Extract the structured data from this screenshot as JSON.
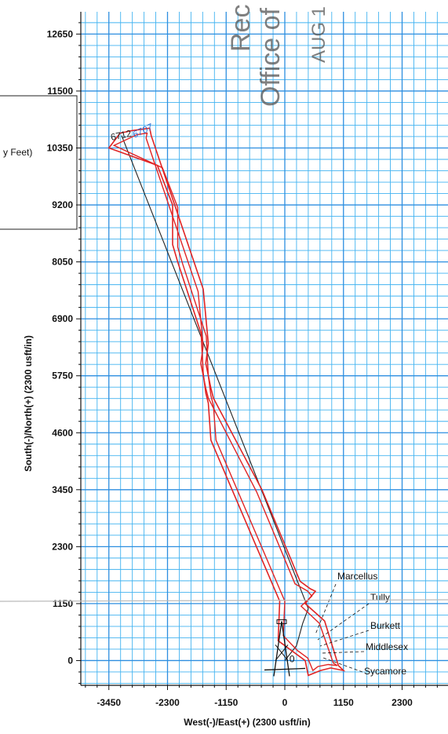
{
  "chart_data": {
    "type": "line",
    "xlabel": "West(-)/East(+) (2300 usft/in)",
    "ylabel": "South(-)/North(+) (2300 usft/in)",
    "xlim": [
      -4000,
      3200
    ],
    "ylim": [
      -500,
      13100
    ],
    "x_ticks": [
      -3450,
      -2300,
      -1150,
      0,
      1150,
      2300
    ],
    "y_ticks": [
      0,
      1150,
      2300,
      3450,
      4600,
      5750,
      6900,
      8050,
      9200,
      10350,
      11500,
      12650
    ],
    "grid": true,
    "series": [
      {
        "role": "wellbore-path",
        "x": [
          0,
          230,
          350,
          460,
          -3200
        ],
        "y": [
          0,
          300,
          750,
          1050,
          10600
        ]
      },
      {
        "role": "boundary-outline",
        "x": [
          -3450,
          -3230,
          -3000,
          -2650,
          -2620,
          -1600,
          -1500,
          -1550,
          -1450,
          -1400,
          -450,
          300,
          500,
          600,
          400,
          780,
          1050,
          1150,
          900,
          700,
          460,
          400,
          -130,
          -100,
          -1450,
          -1500,
          -1550,
          -1600,
          -1640,
          -2100,
          -2200,
          -2200,
          -2500,
          -3450
        ],
        "y": [
          10350,
          10650,
          10700,
          10750,
          10600,
          7500,
          6400,
          6000,
          5500,
          5300,
          3450,
          1600,
          1450,
          1400,
          1150,
          800,
          -100,
          -200,
          -150,
          -200,
          -300,
          0,
          400,
          1200,
          4450,
          5200,
          5400,
          5800,
          6600,
          8050,
          8400,
          9200,
          10000,
          10350
        ]
      },
      {
        "role": "boundary-outline-inner",
        "x": [
          -3350,
          -2900,
          -2700,
          -2720,
          -1700,
          -1600,
          -1650,
          -1550,
          -1500,
          -550,
          200,
          450,
          530,
          320,
          680,
          950,
          1030,
          850,
          650,
          550,
          450,
          250,
          -30,
          0,
          -1350,
          -1400,
          -1450,
          -1500,
          -1540,
          -2000,
          -2100,
          -2100,
          -2400,
          -3350
        ],
        "y": [
          10400,
          10620,
          10650,
          10550,
          7450,
          6350,
          6000,
          5500,
          5300,
          3400,
          1550,
          1400,
          1300,
          1100,
          750,
          -50,
          -100,
          -80,
          -120,
          -200,
          50,
          200,
          500,
          1200,
          4450,
          5150,
          5350,
          5750,
          6550,
          8000,
          8350,
          9150,
          9950,
          10400
        ]
      }
    ],
    "formations": [
      "Marcellus",
      "Tully",
      "Burkett",
      "Middlesex",
      "Sycamore"
    ],
    "well_labels": [
      "6712",
      "6707"
    ],
    "origin_label": "0",
    "legend_fragment": "y Feet)",
    "stamp_lines": [
      "Rec",
      "Office of",
      "AUG 1"
    ]
  }
}
